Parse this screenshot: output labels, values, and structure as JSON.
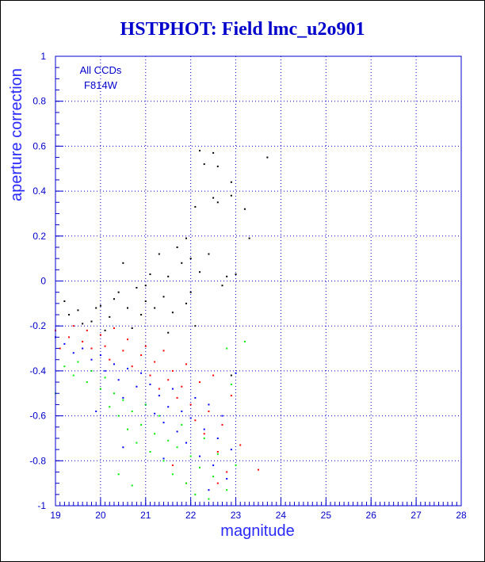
{
  "chart_data": {
    "type": "scatter",
    "title": "HSTPHOT: Field lmc_u2o901",
    "xlabel": "magnitude",
    "ylabel": "aperture correction",
    "xlim": [
      19,
      28
    ],
    "ylim": [
      -1,
      1
    ],
    "x_ticks": [
      "19",
      "20",
      "21",
      "22",
      "23",
      "24",
      "25",
      "26",
      "27",
      "28"
    ],
    "y_ticks": [
      "-1",
      "-0.8",
      "-0.6",
      "-0.4",
      "-0.2",
      "0",
      "0.2",
      "0.4",
      "0.6",
      "0.8",
      "1"
    ],
    "grid": true,
    "annotations": [
      "All CCDs",
      "F814W"
    ],
    "colors": {
      "axis": "#0000cc",
      "grid": "#0000cc",
      "title": "#0000cc"
    },
    "series": [
      {
        "color": "#000000",
        "points": [
          [
            19.2,
            -0.09
          ],
          [
            19.3,
            -0.15
          ],
          [
            19.5,
            -0.13
          ],
          [
            19.6,
            -0.19
          ],
          [
            19.8,
            -0.18
          ],
          [
            19.9,
            -0.12
          ],
          [
            20.0,
            -0.11
          ],
          [
            20.1,
            -0.22
          ],
          [
            20.2,
            -0.16
          ],
          [
            20.3,
            -0.08
          ],
          [
            20.4,
            -0.05
          ],
          [
            20.5,
            0.08
          ],
          [
            20.6,
            -0.12
          ],
          [
            20.7,
            -0.21
          ],
          [
            20.8,
            -0.03
          ],
          [
            20.9,
            -0.15
          ],
          [
            21.0,
            -0.09
          ],
          [
            21.0,
            -0.02
          ],
          [
            21.1,
            0.03
          ],
          [
            21.2,
            -0.12
          ],
          [
            21.3,
            0.12
          ],
          [
            21.4,
            -0.07
          ],
          [
            21.5,
            0.02
          ],
          [
            21.6,
            -0.14
          ],
          [
            21.7,
            0.15
          ],
          [
            21.8,
            0.08
          ],
          [
            21.9,
            0.19
          ],
          [
            22.0,
            -0.05
          ],
          [
            22.0,
            0.1
          ],
          [
            22.1,
            0.33
          ],
          [
            22.1,
            -0.2
          ],
          [
            22.2,
            0.04
          ],
          [
            22.3,
            0.52
          ],
          [
            22.4,
            0.12
          ],
          [
            22.5,
            0.57
          ],
          [
            22.5,
            0.37
          ],
          [
            22.6,
            0.35
          ],
          [
            22.6,
            0.51
          ],
          [
            22.7,
            -0.02
          ],
          [
            22.8,
            0.02
          ],
          [
            22.9,
            0.44
          ],
          [
            22.9,
            -0.42
          ],
          [
            23.0,
            0.03
          ],
          [
            23.2,
            0.32
          ],
          [
            23.3,
            0.19
          ],
          [
            23.7,
            0.55
          ],
          [
            22.2,
            0.58
          ],
          [
            22.9,
            0.38
          ],
          [
            21.5,
            -0.23
          ],
          [
            21.9,
            -0.1
          ]
        ]
      },
      {
        "color": "#ff0000",
        "points": [
          [
            19.0,
            -0.22
          ],
          [
            19.1,
            -0.3
          ],
          [
            19.3,
            -0.25
          ],
          [
            19.4,
            -0.2
          ],
          [
            19.6,
            -0.27
          ],
          [
            19.7,
            -0.22
          ],
          [
            19.8,
            -0.3
          ],
          [
            20.0,
            -0.24
          ],
          [
            20.1,
            -0.29
          ],
          [
            20.2,
            -0.35
          ],
          [
            20.3,
            -0.21
          ],
          [
            20.5,
            -0.31
          ],
          [
            20.6,
            -0.26
          ],
          [
            20.7,
            -0.38
          ],
          [
            20.9,
            -0.33
          ],
          [
            21.0,
            -0.29
          ],
          [
            21.1,
            -0.42
          ],
          [
            21.2,
            -0.36
          ],
          [
            21.3,
            -0.48
          ],
          [
            21.4,
            -0.31
          ],
          [
            21.5,
            -0.44
          ],
          [
            21.6,
            -0.4
          ],
          [
            21.7,
            -0.52
          ],
          [
            21.8,
            -0.47
          ],
          [
            21.9,
            -0.37
          ],
          [
            22.0,
            -0.55
          ],
          [
            22.1,
            -0.62
          ],
          [
            22.2,
            -0.45
          ],
          [
            22.3,
            -0.68
          ],
          [
            22.4,
            -0.58
          ],
          [
            22.5,
            -0.42
          ],
          [
            22.6,
            -0.76
          ],
          [
            22.7,
            -0.64
          ],
          [
            22.8,
            -0.85
          ],
          [
            22.9,
            -0.51
          ],
          [
            23.1,
            -0.73
          ],
          [
            23.5,
            -0.84
          ],
          [
            21.9,
            -0.9
          ],
          [
            21.6,
            -0.82
          ],
          [
            22.6,
            -0.9
          ]
        ]
      },
      {
        "color": "#0000ff",
        "points": [
          [
            19.0,
            -0.25
          ],
          [
            19.2,
            -0.28
          ],
          [
            19.4,
            -0.32
          ],
          [
            19.6,
            -0.3
          ],
          [
            19.8,
            -0.35
          ],
          [
            20.0,
            -0.33
          ],
          [
            20.1,
            -0.4
          ],
          [
            20.3,
            -0.37
          ],
          [
            20.4,
            -0.44
          ],
          [
            20.5,
            -0.52
          ],
          [
            20.6,
            -0.39
          ],
          [
            20.8,
            -0.47
          ],
          [
            20.9,
            -0.41
          ],
          [
            21.0,
            -0.55
          ],
          [
            21.1,
            -0.46
          ],
          [
            21.2,
            -0.59
          ],
          [
            21.3,
            -0.51
          ],
          [
            21.4,
            -0.63
          ],
          [
            21.5,
            -0.56
          ],
          [
            21.6,
            -0.48
          ],
          [
            21.7,
            -0.67
          ],
          [
            21.8,
            -0.58
          ],
          [
            21.9,
            -0.72
          ],
          [
            22.0,
            -0.61
          ],
          [
            22.1,
            -0.52
          ],
          [
            22.2,
            -0.78
          ],
          [
            22.3,
            -0.66
          ],
          [
            22.4,
            -0.55
          ],
          [
            22.5,
            -0.82
          ],
          [
            22.6,
            -0.7
          ],
          [
            22.7,
            -0.6
          ],
          [
            22.8,
            -0.88
          ],
          [
            22.9,
            -0.75
          ],
          [
            23.0,
            -0.41
          ],
          [
            22.4,
            -0.93
          ],
          [
            21.4,
            -0.79
          ],
          [
            20.5,
            -0.74
          ],
          [
            19.9,
            -0.58
          ]
        ]
      },
      {
        "color": "#00ee00",
        "points": [
          [
            19.0,
            -0.5
          ],
          [
            19.2,
            -0.38
          ],
          [
            19.4,
            -0.42
          ],
          [
            19.5,
            -0.36
          ],
          [
            19.7,
            -0.45
          ],
          [
            19.8,
            -0.4
          ],
          [
            20.0,
            -0.48
          ],
          [
            20.1,
            -0.43
          ],
          [
            20.2,
            -0.56
          ],
          [
            20.3,
            -0.5
          ],
          [
            20.4,
            -0.6
          ],
          [
            20.5,
            -0.53
          ],
          [
            20.6,
            -0.66
          ],
          [
            20.7,
            -0.58
          ],
          [
            20.8,
            -0.72
          ],
          [
            20.9,
            -0.64
          ],
          [
            21.0,
            -0.55
          ],
          [
            21.1,
            -0.76
          ],
          [
            21.2,
            -0.68
          ],
          [
            21.3,
            -0.6
          ],
          [
            21.4,
            -0.8
          ],
          [
            21.5,
            -0.71
          ],
          [
            21.6,
            -0.86
          ],
          [
            21.7,
            -0.74
          ],
          [
            21.8,
            -0.64
          ],
          [
            21.9,
            -0.9
          ],
          [
            22.0,
            -0.78
          ],
          [
            22.1,
            -0.95
          ],
          [
            22.2,
            -0.83
          ],
          [
            22.3,
            -0.7
          ],
          [
            22.4,
            -0.97
          ],
          [
            22.5,
            -0.87
          ],
          [
            22.6,
            -0.77
          ],
          [
            22.8,
            -0.93
          ],
          [
            23.0,
            -0.82
          ],
          [
            22.9,
            -0.46
          ],
          [
            22.8,
            -0.3
          ],
          [
            23.2,
            -0.27
          ],
          [
            20.4,
            -0.86
          ],
          [
            20.7,
            -0.91
          ]
        ]
      }
    ]
  }
}
